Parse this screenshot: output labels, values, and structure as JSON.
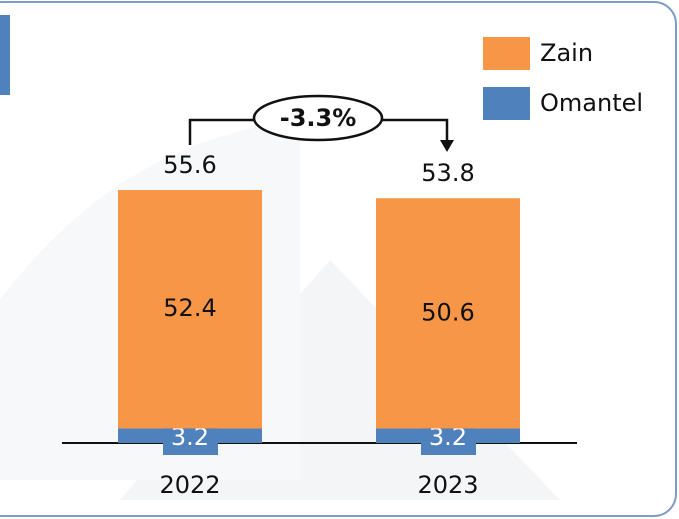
{
  "chart_data": {
    "type": "stacked-bar",
    "categories": [
      "2022",
      "2023"
    ],
    "series": [
      {
        "name": "Omantel",
        "color": "#4f81bd",
        "values": [
          3.2,
          3.2
        ]
      },
      {
        "name": "Zain",
        "color": "#f79646",
        "values": [
          52.4,
          50.6
        ]
      }
    ],
    "totals": [
      55.6,
      53.8
    ],
    "annotation": "-3.3%"
  }
}
